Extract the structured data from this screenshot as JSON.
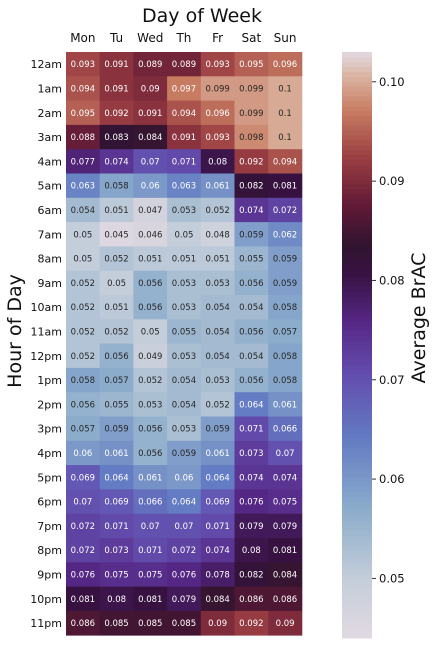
{
  "chart_data": {
    "type": "heatmap",
    "title": "Day of Week",
    "xlabel": "Day of Week",
    "ylabel": "Hour of Day",
    "colorbar_label": "Average BrAC",
    "colorbar_ticks": [
      "0.05",
      "0.06",
      "0.07",
      "0.08",
      "0.09",
      "0.10"
    ],
    "colorbar_range": [
      0.044,
      0.103
    ],
    "colormap": "twilight_shifted",
    "x_categories": [
      "Mon",
      "Tu",
      "Wed",
      "Th",
      "Fr",
      "Sat",
      "Sun"
    ],
    "y_categories": [
      "12am",
      "1am",
      "2am",
      "3am",
      "4am",
      "5am",
      "6am",
      "7am",
      "8am",
      "9am",
      "10am",
      "11am",
      "12pm",
      "1pm",
      "2pm",
      "3pm",
      "4pm",
      "5pm",
      "6pm",
      "7pm",
      "8pm",
      "9pm",
      "10pm",
      "11pm"
    ],
    "values": [
      [
        0.093,
        0.091,
        0.089,
        0.089,
        0.093,
        0.095,
        0.096
      ],
      [
        0.094,
        0.091,
        0.09,
        0.097,
        0.099,
        0.099,
        0.1
      ],
      [
        0.095,
        0.092,
        0.091,
        0.094,
        0.096,
        0.099,
        0.1
      ],
      [
        0.088,
        0.083,
        0.084,
        0.091,
        0.093,
        0.098,
        0.1
      ],
      [
        0.077,
        0.074,
        0.07,
        0.071,
        0.08,
        0.092,
        0.094
      ],
      [
        0.063,
        0.058,
        0.06,
        0.063,
        0.061,
        0.082,
        0.081
      ],
      [
        0.054,
        0.051,
        0.047,
        0.053,
        0.052,
        0.074,
        0.072
      ],
      [
        0.05,
        0.045,
        0.046,
        0.05,
        0.048,
        0.059,
        0.062
      ],
      [
        0.05,
        0.052,
        0.051,
        0.051,
        0.051,
        0.055,
        0.059
      ],
      [
        0.052,
        0.05,
        0.056,
        0.053,
        0.053,
        0.056,
        0.059
      ],
      [
        0.052,
        0.051,
        0.056,
        0.053,
        0.054,
        0.054,
        0.058
      ],
      [
        0.052,
        0.052,
        0.05,
        0.055,
        0.054,
        0.056,
        0.057
      ],
      [
        0.052,
        0.056,
        0.049,
        0.053,
        0.054,
        0.054,
        0.058
      ],
      [
        0.058,
        0.057,
        0.052,
        0.054,
        0.053,
        0.056,
        0.058
      ],
      [
        0.056,
        0.055,
        0.053,
        0.054,
        0.052,
        0.064,
        0.061
      ],
      [
        0.057,
        0.059,
        0.056,
        0.053,
        0.059,
        0.071,
        0.066
      ],
      [
        0.06,
        0.061,
        0.056,
        0.059,
        0.061,
        0.073,
        0.07
      ],
      [
        0.069,
        0.064,
        0.061,
        0.06,
        0.064,
        0.074,
        0.074
      ],
      [
        0.07,
        0.069,
        0.066,
        0.064,
        0.069,
        0.076,
        0.075
      ],
      [
        0.072,
        0.071,
        0.07,
        0.07,
        0.071,
        0.079,
        0.079
      ],
      [
        0.072,
        0.073,
        0.071,
        0.072,
        0.074,
        0.08,
        0.081
      ],
      [
        0.076,
        0.075,
        0.075,
        0.076,
        0.078,
        0.082,
        0.084
      ],
      [
        0.081,
        0.08,
        0.081,
        0.079,
        0.084,
        0.086,
        0.086
      ],
      [
        0.086,
        0.085,
        0.085,
        0.085,
        0.09,
        0.092,
        0.09
      ]
    ]
  }
}
